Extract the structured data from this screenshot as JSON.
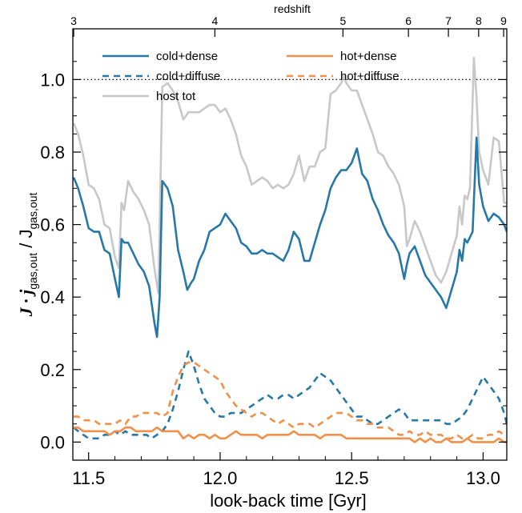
{
  "chart_data": {
    "type": "line",
    "xlabel": "look-back time [Gyr]",
    "ylabel_main": "J · j",
    "ylabel_sub": "gas,out",
    "ylabel_tail": " / J",
    "ylabel_sub2": "gas,out",
    "top_axis_label": "redshift",
    "xlim": [
      11.44,
      13.09
    ],
    "ylim": [
      -0.05,
      1.14
    ],
    "x_ticks": [
      11.5,
      12.0,
      12.5,
      13.0
    ],
    "x_tick_labels": [
      "11.5",
      "12.0",
      "12.5",
      "13.0"
    ],
    "y_ticks": [
      0.0,
      0.2,
      0.4,
      0.6,
      0.8,
      1.0
    ],
    "y_tick_labels": [
      "0.0",
      "0.2",
      "0.4",
      "0.6",
      "0.8",
      "1.0"
    ],
    "top_ticks": [
      {
        "label": "3",
        "x": 11.443
      },
      {
        "label": "4",
        "x": 11.98
      },
      {
        "label": "5",
        "x": 12.467
      },
      {
        "label": "6",
        "x": 12.716
      },
      {
        "label": "7",
        "x": 12.868
      },
      {
        "label": "8",
        "x": 12.983
      },
      {
        "label": "9",
        "x": 13.078
      }
    ],
    "reference_line": {
      "y": 1.0,
      "style": "dotted"
    },
    "legend_placement": "top",
    "colors": {
      "blue": "#2778a6",
      "orange": "#f0904a",
      "gray": "#c8c8c8"
    },
    "series": [
      {
        "name": "host tot",
        "color": "#c8c8c8",
        "dash": "solid",
        "x": [
          11.443,
          11.46,
          11.48,
          11.5,
          11.52,
          11.54,
          11.56,
          11.58,
          11.6,
          11.615,
          11.625,
          11.635,
          11.65,
          11.67,
          11.69,
          11.71,
          11.73,
          11.75,
          11.765,
          11.78,
          11.8,
          11.82,
          11.84,
          11.86,
          11.88,
          11.9,
          11.92,
          11.94,
          11.96,
          11.98,
          12.0,
          12.02,
          12.04,
          12.06,
          12.08,
          12.1,
          12.12,
          12.14,
          12.16,
          12.18,
          12.2,
          12.22,
          12.24,
          12.26,
          12.28,
          12.3,
          12.32,
          12.34,
          12.36,
          12.38,
          12.4,
          12.42,
          12.44,
          12.46,
          12.47,
          12.48,
          12.5,
          12.52,
          12.54,
          12.56,
          12.58,
          12.6,
          12.62,
          12.64,
          12.66,
          12.68,
          12.7,
          12.71,
          12.72,
          12.74,
          12.76,
          12.78,
          12.8,
          12.82,
          12.84,
          12.86,
          12.88,
          12.9,
          12.91,
          12.92,
          12.93,
          12.94,
          12.95,
          12.965,
          12.975,
          12.985,
          13.0,
          13.02,
          13.04,
          13.06,
          13.08,
          13.09
        ],
        "y": [
          0.88,
          0.85,
          0.79,
          0.71,
          0.7,
          0.67,
          0.6,
          0.59,
          0.51,
          0.48,
          0.66,
          0.64,
          0.72,
          0.69,
          0.67,
          0.64,
          0.6,
          0.48,
          0.41,
          0.98,
          0.99,
          0.97,
          0.94,
          0.89,
          0.91,
          0.91,
          0.91,
          0.92,
          0.93,
          0.93,
          0.91,
          0.92,
          0.89,
          0.85,
          0.79,
          0.76,
          0.71,
          0.72,
          0.73,
          0.72,
          0.7,
          0.71,
          0.7,
          0.71,
          0.74,
          0.79,
          0.72,
          0.76,
          0.76,
          0.8,
          0.81,
          0.96,
          0.97,
          0.99,
          1.01,
          0.99,
          0.97,
          0.97,
          0.93,
          0.89,
          0.85,
          0.8,
          0.79,
          0.76,
          0.74,
          0.71,
          0.65,
          0.54,
          0.56,
          0.61,
          0.58,
          0.54,
          0.5,
          0.46,
          0.44,
          0.47,
          0.52,
          0.57,
          0.65,
          0.6,
          0.68,
          0.67,
          0.7,
          1.06,
          0.95,
          0.8,
          0.75,
          0.71,
          0.84,
          0.83,
          0.66,
          0.66
        ]
      },
      {
        "name": "cold+dense",
        "color": "#2778a6",
        "dash": "solid",
        "x": [
          11.443,
          11.46,
          11.48,
          11.5,
          11.52,
          11.54,
          11.56,
          11.58,
          11.6,
          11.615,
          11.625,
          11.635,
          11.65,
          11.67,
          11.69,
          11.71,
          11.73,
          11.75,
          11.76,
          11.77,
          11.78,
          11.8,
          11.82,
          11.84,
          11.86,
          11.875,
          11.89,
          11.9,
          11.92,
          11.94,
          11.96,
          11.98,
          12.0,
          12.02,
          12.04,
          12.06,
          12.08,
          12.1,
          12.12,
          12.14,
          12.16,
          12.18,
          12.2,
          12.22,
          12.24,
          12.26,
          12.28,
          12.3,
          12.32,
          12.34,
          12.36,
          12.38,
          12.4,
          12.42,
          12.44,
          12.46,
          12.48,
          12.5,
          12.52,
          12.54,
          12.56,
          12.58,
          12.6,
          12.62,
          12.64,
          12.66,
          12.68,
          12.7,
          12.71,
          12.72,
          12.74,
          12.76,
          12.78,
          12.8,
          12.82,
          12.84,
          12.86,
          12.88,
          12.9,
          12.91,
          12.92,
          12.93,
          12.94,
          12.96,
          12.975,
          12.985,
          13.0,
          13.02,
          13.04,
          13.06,
          13.08,
          13.09
        ],
        "y": [
          0.73,
          0.7,
          0.65,
          0.59,
          0.58,
          0.58,
          0.53,
          0.52,
          0.45,
          0.4,
          0.56,
          0.55,
          0.55,
          0.52,
          0.49,
          0.47,
          0.43,
          0.33,
          0.29,
          0.4,
          0.72,
          0.7,
          0.65,
          0.53,
          0.47,
          0.42,
          0.44,
          0.45,
          0.5,
          0.53,
          0.58,
          0.59,
          0.6,
          0.63,
          0.61,
          0.59,
          0.55,
          0.54,
          0.52,
          0.52,
          0.53,
          0.52,
          0.52,
          0.51,
          0.5,
          0.53,
          0.58,
          0.56,
          0.5,
          0.5,
          0.55,
          0.6,
          0.64,
          0.7,
          0.73,
          0.75,
          0.75,
          0.77,
          0.81,
          0.74,
          0.72,
          0.67,
          0.64,
          0.6,
          0.57,
          0.55,
          0.52,
          0.45,
          0.49,
          0.52,
          0.54,
          0.5,
          0.46,
          0.44,
          0.42,
          0.4,
          0.37,
          0.42,
          0.47,
          0.53,
          0.5,
          0.56,
          0.55,
          0.58,
          0.84,
          0.71,
          0.65,
          0.61,
          0.63,
          0.62,
          0.6,
          0.58
        ]
      },
      {
        "name": "cold+diffuse",
        "color": "#2778a6",
        "dash": "dashed",
        "x": [
          11.443,
          11.46,
          11.48,
          11.5,
          11.52,
          11.54,
          11.56,
          11.58,
          11.6,
          11.62,
          11.64,
          11.66,
          11.68,
          11.7,
          11.72,
          11.74,
          11.76,
          11.78,
          11.8,
          11.82,
          11.84,
          11.86,
          11.88,
          11.9,
          11.92,
          11.94,
          11.96,
          11.98,
          12.0,
          12.02,
          12.04,
          12.06,
          12.08,
          12.1,
          12.12,
          12.14,
          12.16,
          12.18,
          12.2,
          12.22,
          12.24,
          12.26,
          12.28,
          12.3,
          12.32,
          12.34,
          12.36,
          12.38,
          12.4,
          12.42,
          12.44,
          12.46,
          12.48,
          12.5,
          12.52,
          12.54,
          12.56,
          12.58,
          12.6,
          12.62,
          12.64,
          12.66,
          12.68,
          12.7,
          12.72,
          12.74,
          12.76,
          12.78,
          12.8,
          12.82,
          12.84,
          12.86,
          12.88,
          12.9,
          12.92,
          12.94,
          12.96,
          12.98,
          13.0,
          13.02,
          13.04,
          13.06,
          13.08,
          13.09
        ],
        "y": [
          0.04,
          0.03,
          0.02,
          0.01,
          0.01,
          0.01,
          0.02,
          0.02,
          0.03,
          0.02,
          0.03,
          0.02,
          0.02,
          0.02,
          0.02,
          0.01,
          0.02,
          0.03,
          0.05,
          0.09,
          0.14,
          0.2,
          0.25,
          0.21,
          0.16,
          0.12,
          0.1,
          0.08,
          0.07,
          0.07,
          0.08,
          0.08,
          0.08,
          0.09,
          0.1,
          0.11,
          0.12,
          0.13,
          0.12,
          0.12,
          0.13,
          0.13,
          0.12,
          0.13,
          0.14,
          0.15,
          0.17,
          0.19,
          0.18,
          0.17,
          0.15,
          0.13,
          0.11,
          0.09,
          0.07,
          0.07,
          0.06,
          0.05,
          0.05,
          0.06,
          0.07,
          0.08,
          0.09,
          0.08,
          0.06,
          0.06,
          0.06,
          0.06,
          0.06,
          0.06,
          0.06,
          0.05,
          0.05,
          0.06,
          0.07,
          0.09,
          0.12,
          0.15,
          0.18,
          0.16,
          0.14,
          0.12,
          0.08,
          0.05
        ]
      },
      {
        "name": "hot+dense",
        "color": "#f0904a",
        "dash": "solid",
        "x": [
          11.443,
          11.46,
          11.48,
          11.5,
          11.52,
          11.54,
          11.56,
          11.58,
          11.6,
          11.62,
          11.64,
          11.66,
          11.68,
          11.7,
          11.72,
          11.74,
          11.76,
          11.78,
          11.8,
          11.82,
          11.84,
          11.86,
          11.88,
          11.9,
          11.92,
          11.94,
          11.96,
          11.98,
          12.0,
          12.02,
          12.04,
          12.06,
          12.08,
          12.1,
          12.12,
          12.14,
          12.16,
          12.18,
          12.2,
          12.22,
          12.24,
          12.26,
          12.28,
          12.3,
          12.32,
          12.34,
          12.36,
          12.38,
          12.4,
          12.42,
          12.44,
          12.46,
          12.48,
          12.5,
          12.52,
          12.54,
          12.56,
          12.58,
          12.6,
          12.62,
          12.64,
          12.66,
          12.68,
          12.7,
          12.72,
          12.74,
          12.76,
          12.78,
          12.8,
          12.82,
          12.84,
          12.86,
          12.88,
          12.9,
          12.92,
          12.94,
          12.96,
          12.98,
          13.0,
          13.02,
          13.04,
          13.06,
          13.08,
          13.09
        ],
        "y": [
          0.04,
          0.04,
          0.03,
          0.03,
          0.03,
          0.03,
          0.03,
          0.02,
          0.03,
          0.03,
          0.04,
          0.04,
          0.03,
          0.03,
          0.03,
          0.03,
          0.04,
          0.03,
          0.03,
          0.03,
          0.03,
          0.01,
          0.02,
          0.01,
          0.02,
          0.02,
          0.01,
          0.02,
          0.01,
          0.01,
          0.02,
          0.03,
          0.02,
          0.02,
          0.02,
          0.02,
          0.01,
          0.02,
          0.02,
          0.02,
          0.02,
          0.02,
          0.03,
          0.02,
          0.02,
          0.02,
          0.02,
          0.01,
          0.02,
          0.02,
          0.02,
          0.02,
          0.01,
          0.01,
          0.01,
          0.01,
          0.01,
          0.01,
          0.01,
          0.01,
          0.01,
          0.01,
          0.01,
          0.01,
          0.01,
          0.0,
          0.01,
          0.0,
          0.01,
          0.0,
          0.0,
          0.01,
          0.0,
          0.0,
          0.0,
          0.01,
          0.0,
          0.0,
          0.0,
          0.0,
          0.0,
          0.01,
          0.0,
          0.0
        ]
      },
      {
        "name": "hot+diffuse",
        "color": "#f0904a",
        "dash": "dashed",
        "x": [
          11.443,
          11.46,
          11.48,
          11.5,
          11.52,
          11.54,
          11.56,
          11.58,
          11.6,
          11.62,
          11.64,
          11.66,
          11.68,
          11.7,
          11.72,
          11.74,
          11.76,
          11.78,
          11.8,
          11.82,
          11.84,
          11.86,
          11.88,
          11.9,
          11.92,
          11.94,
          11.96,
          11.98,
          12.0,
          12.02,
          12.04,
          12.06,
          12.08,
          12.1,
          12.12,
          12.14,
          12.16,
          12.18,
          12.2,
          12.22,
          12.24,
          12.26,
          12.28,
          12.3,
          12.32,
          12.34,
          12.36,
          12.38,
          12.4,
          12.42,
          12.44,
          12.46,
          12.48,
          12.5,
          12.52,
          12.54,
          12.56,
          12.58,
          12.6,
          12.62,
          12.64,
          12.66,
          12.68,
          12.7,
          12.72,
          12.74,
          12.76,
          12.78,
          12.8,
          12.82,
          12.84,
          12.86,
          12.88,
          12.9,
          12.92,
          12.94,
          12.96,
          12.98,
          13.0,
          13.02,
          13.04,
          13.06,
          13.08,
          13.09
        ],
        "y": [
          0.07,
          0.07,
          0.06,
          0.06,
          0.06,
          0.05,
          0.05,
          0.05,
          0.05,
          0.06,
          0.05,
          0.07,
          0.07,
          0.08,
          0.08,
          0.08,
          0.08,
          0.07,
          0.08,
          0.14,
          0.18,
          0.21,
          0.22,
          0.22,
          0.21,
          0.2,
          0.19,
          0.18,
          0.17,
          0.14,
          0.12,
          0.1,
          0.09,
          0.08,
          0.07,
          0.08,
          0.08,
          0.07,
          0.06,
          0.05,
          0.06,
          0.05,
          0.04,
          0.05,
          0.05,
          0.05,
          0.04,
          0.05,
          0.06,
          0.07,
          0.08,
          0.08,
          0.08,
          0.07,
          0.06,
          0.06,
          0.05,
          0.05,
          0.04,
          0.04,
          0.04,
          0.03,
          0.02,
          0.02,
          0.03,
          0.02,
          0.02,
          0.03,
          0.02,
          0.02,
          0.02,
          0.01,
          0.01,
          0.02,
          0.01,
          0.01,
          0.02,
          0.01,
          0.01,
          0.02,
          0.02,
          0.03,
          0.02,
          0.02
        ]
      }
    ],
    "legend": [
      {
        "label": "cold+dense",
        "color": "#2778a6",
        "dash": "solid"
      },
      {
        "label": "hot+dense",
        "color": "#f0904a",
        "dash": "solid"
      },
      {
        "label": "cold+diffuse",
        "color": "#2778a6",
        "dash": "dashed"
      },
      {
        "label": "hot+diffuse",
        "color": "#f0904a",
        "dash": "dashed"
      },
      {
        "label": "host tot",
        "color": "#c8c8c8",
        "dash": "solid"
      }
    ]
  }
}
